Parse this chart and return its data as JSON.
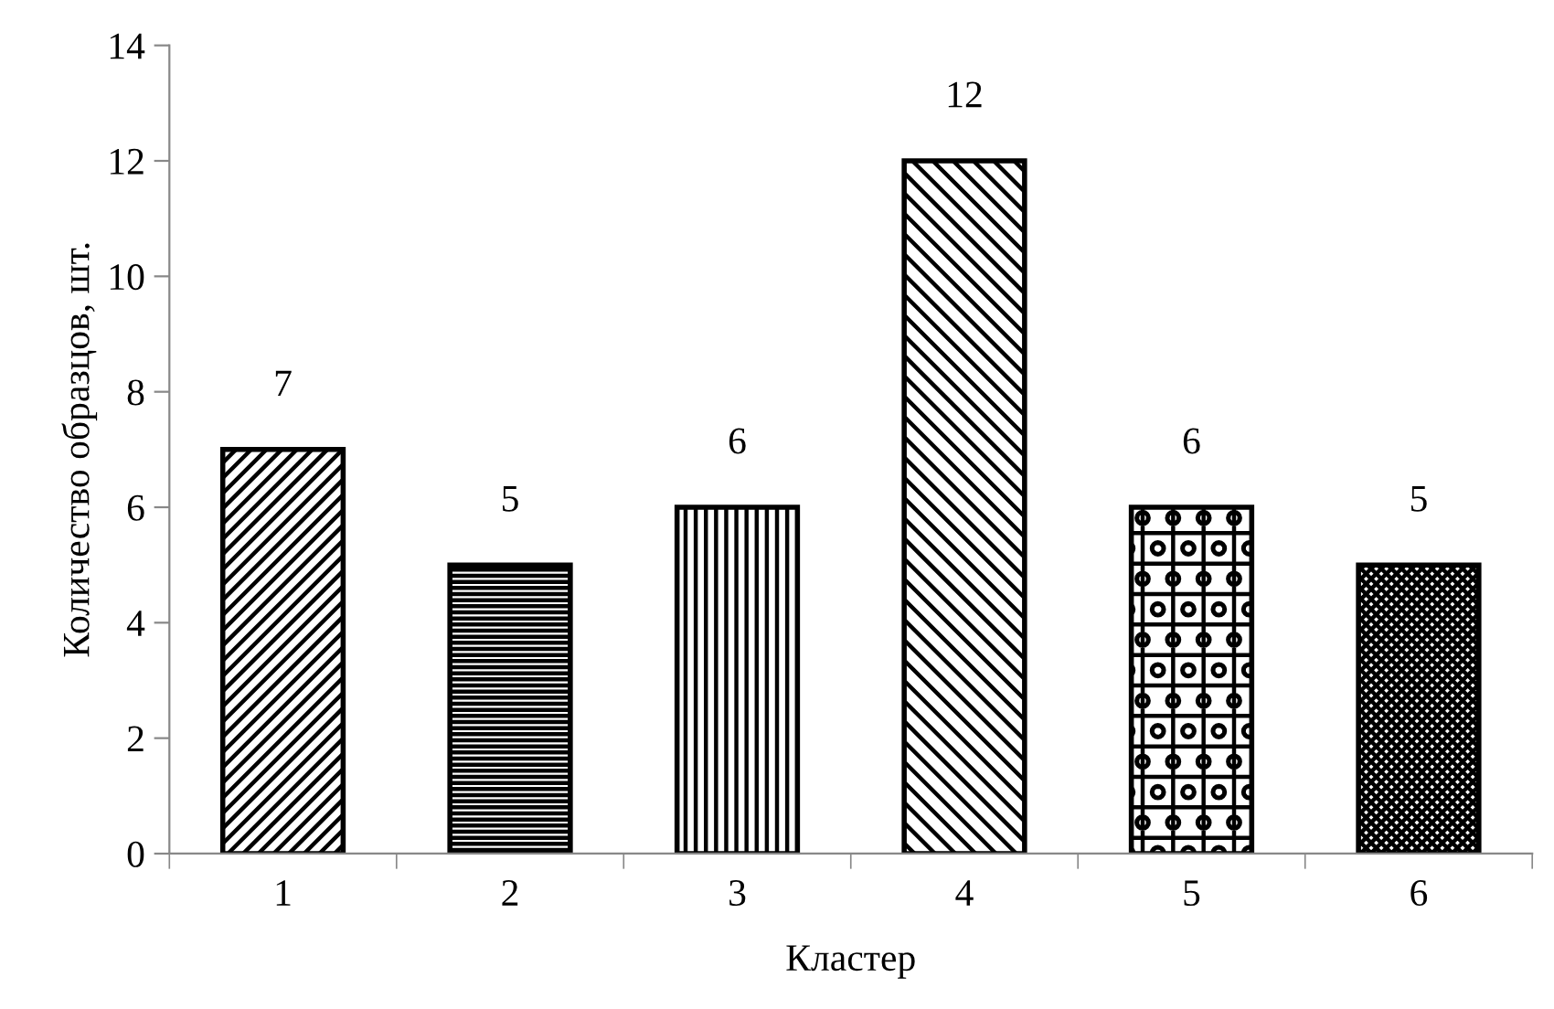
{
  "chart_data": {
    "type": "bar",
    "xlabel": "Кластер",
    "ylabel": "Количество образцов, шт.",
    "categories": [
      "1",
      "2",
      "3",
      "4",
      "5",
      "6"
    ],
    "values": [
      7,
      5,
      6,
      12,
      6,
      5
    ],
    "color": "#000000",
    "ylim": [
      0,
      14
    ],
    "yticks": [
      0,
      2,
      4,
      6,
      8,
      10,
      12,
      14
    ],
    "grid": false,
    "legend": false,
    "data_labels": true
  }
}
